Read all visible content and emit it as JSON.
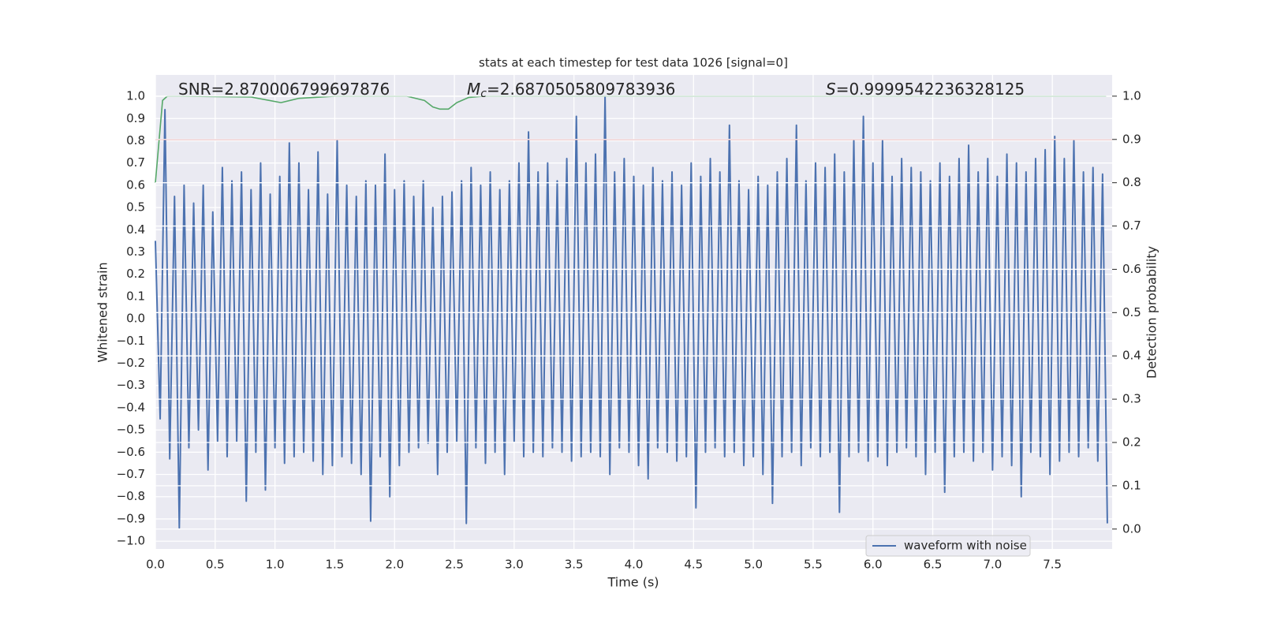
{
  "chart_data": {
    "type": "line",
    "title": "stats at each timestep for test data 1026 [signal=0]",
    "xlabel": "Time (s)",
    "ylabel": "Whitened strain",
    "y2label": "Detection probability",
    "annotations": [
      {
        "text": "SNR=2.870006799697876"
      },
      {
        "symbol": "M",
        "subscript": "c",
        "text": "=2.6870505809783936"
      },
      {
        "symbol": "S",
        "text": "=0.9999542236328125"
      }
    ],
    "legend": "lower right",
    "grid": true,
    "xlim": [
      0,
      8
    ],
    "ylim": [
      -1.035,
      1.096
    ],
    "y2lim": [
      -0.046,
      1.049
    ],
    "xticks": [
      {
        "value": 0,
        "label": "0.0"
      },
      {
        "value": 0.5,
        "label": "0.5"
      },
      {
        "value": 1,
        "label": "1.0"
      },
      {
        "value": 1.5,
        "label": "1.5"
      },
      {
        "value": 2,
        "label": "2.0"
      },
      {
        "value": 2.5,
        "label": "2.5"
      },
      {
        "value": 3,
        "label": "3.0"
      },
      {
        "value": 3.5,
        "label": "3.5"
      },
      {
        "value": 4,
        "label": "4.0"
      },
      {
        "value": 4.5,
        "label": "4.5"
      },
      {
        "value": 5,
        "label": "5.0"
      },
      {
        "value": 5.5,
        "label": "5.5"
      },
      {
        "value": 6,
        "label": "6.0"
      },
      {
        "value": 6.5,
        "label": "6.5"
      },
      {
        "value": 7,
        "label": "7.0"
      },
      {
        "value": 7.5,
        "label": "7.5"
      }
    ],
    "yticks": [
      {
        "value": -1,
        "label": "−1.0"
      },
      {
        "value": -0.9,
        "label": "−0.9"
      },
      {
        "value": -0.8,
        "label": "−0.8"
      },
      {
        "value": -0.7,
        "label": "−0.7"
      },
      {
        "value": -0.6,
        "label": "−0.6"
      },
      {
        "value": -0.5,
        "label": "−0.5"
      },
      {
        "value": -0.4,
        "label": "−0.4"
      },
      {
        "value": -0.3,
        "label": "−0.3"
      },
      {
        "value": -0.2,
        "label": "−0.2"
      },
      {
        "value": -0.1,
        "label": "−0.1"
      },
      {
        "value": 0,
        "label": "0.0"
      },
      {
        "value": 0.1,
        "label": "0.1"
      },
      {
        "value": 0.2,
        "label": "0.2"
      },
      {
        "value": 0.3,
        "label": "0.3"
      },
      {
        "value": 0.4,
        "label": "0.4"
      },
      {
        "value": 0.5,
        "label": "0.5"
      },
      {
        "value": 0.6,
        "label": "0.6"
      },
      {
        "value": 0.7,
        "label": "0.7"
      },
      {
        "value": 0.8,
        "label": "0.8"
      },
      {
        "value": 0.9,
        "label": "0.9"
      },
      {
        "value": 1,
        "label": "1.0"
      }
    ],
    "y2ticks": [
      {
        "value": 0,
        "label": "0.0"
      },
      {
        "value": 0.1,
        "label": "0.1"
      },
      {
        "value": 0.2,
        "label": "0.2"
      },
      {
        "value": 0.3,
        "label": "0.3"
      },
      {
        "value": 0.4,
        "label": "0.4"
      },
      {
        "value": 0.5,
        "label": "0.5"
      },
      {
        "value": 0.6,
        "label": "0.6"
      },
      {
        "value": 0.7,
        "label": "0.7"
      },
      {
        "value": 0.8,
        "label": "0.8"
      },
      {
        "value": 0.9,
        "label": "0.9"
      },
      {
        "value": 1,
        "label": "1.0"
      }
    ],
    "threshold": {
      "value": 0.9,
      "color": "#c44e52",
      "axis": "y2"
    },
    "series": [
      {
        "name": "waveform with noise",
        "color": "#4c72b0",
        "x": [
          0,
          0.04,
          0.08,
          0.12,
          0.16,
          0.2,
          0.24,
          0.28,
          0.32,
          0.36,
          0.4,
          0.44,
          0.48,
          0.52,
          0.56,
          0.6,
          0.64,
          0.68,
          0.72,
          0.76,
          0.8,
          0.84,
          0.88,
          0.92,
          0.96,
          1,
          1.04,
          1.08,
          1.12,
          1.16,
          1.2,
          1.24,
          1.28,
          1.32,
          1.36,
          1.4,
          1.44,
          1.48,
          1.52,
          1.56,
          1.6,
          1.64,
          1.68,
          1.72,
          1.76,
          1.8,
          1.84,
          1.88,
          1.92,
          1.96,
          2,
          2.04,
          2.08,
          2.12,
          2.16,
          2.2,
          2.24,
          2.28,
          2.32,
          2.36,
          2.4,
          2.44,
          2.48,
          2.52,
          2.56,
          2.6,
          2.64,
          2.68,
          2.72,
          2.76,
          2.8,
          2.84,
          2.88,
          2.92,
          2.96,
          3,
          3.04,
          3.08,
          3.12,
          3.16,
          3.2,
          3.24,
          3.28,
          3.32,
          3.36,
          3.4,
          3.44,
          3.48,
          3.52,
          3.56,
          3.6,
          3.64,
          3.68,
          3.72,
          3.76,
          3.8,
          3.84,
          3.88,
          3.92,
          3.96,
          4,
          4.04,
          4.08,
          4.12,
          4.16,
          4.2,
          4.24,
          4.28,
          4.32,
          4.36,
          4.4,
          4.44,
          4.48,
          4.52,
          4.56,
          4.6,
          4.64,
          4.68,
          4.72,
          4.76,
          4.8,
          4.84,
          4.88,
          4.92,
          4.96,
          5,
          5.04,
          5.08,
          5.12,
          5.16,
          5.2,
          5.24,
          5.28,
          5.32,
          5.36,
          5.4,
          5.44,
          5.48,
          5.52,
          5.56,
          5.6,
          5.64,
          5.68,
          5.72,
          5.76,
          5.8,
          5.84,
          5.88,
          5.92,
          5.96,
          6,
          6.04,
          6.08,
          6.12,
          6.16,
          6.2,
          6.24,
          6.28,
          6.32,
          6.36,
          6.4,
          6.44,
          6.48,
          6.52,
          6.56,
          6.6,
          6.64,
          6.68,
          6.72,
          6.76,
          6.8,
          6.84,
          6.88,
          6.92,
          6.96,
          7,
          7.04,
          7.08,
          7.12,
          7.16,
          7.2,
          7.24,
          7.28,
          7.32,
          7.36,
          7.4,
          7.44,
          7.48,
          7.52,
          7.56,
          7.6,
          7.64,
          7.68,
          7.72,
          7.76,
          7.8,
          7.84,
          7.88,
          7.92,
          7.96
        ],
        "values": [
          0.35,
          -0.45,
          0.94,
          -0.63,
          0.55,
          -0.94,
          0.6,
          -0.58,
          0.52,
          -0.5,
          0.6,
          -0.68,
          0.48,
          -0.55,
          0.68,
          -0.62,
          0.62,
          -0.55,
          0.66,
          -0.82,
          0.58,
          -0.6,
          0.7,
          -0.77,
          0.56,
          -0.58,
          0.64,
          -0.65,
          0.79,
          -0.62,
          0.7,
          -0.6,
          0.58,
          -0.64,
          0.75,
          -0.7,
          0.56,
          -0.66,
          0.8,
          -0.62,
          0.6,
          -0.65,
          0.55,
          -0.7,
          0.62,
          -0.91,
          0.6,
          -0.62,
          0.74,
          -0.8,
          0.58,
          -0.66,
          0.62,
          -0.6,
          0.55,
          -0.58,
          0.62,
          -0.56,
          0.5,
          -0.7,
          0.55,
          -0.6,
          0.57,
          -0.55,
          0.62,
          -0.92,
          0.68,
          -0.58,
          0.6,
          -0.65,
          0.66,
          -0.6,
          0.58,
          -0.7,
          0.62,
          -0.55,
          0.7,
          -0.62,
          0.84,
          -0.6,
          0.66,
          -0.62,
          0.7,
          -0.58,
          0.62,
          -0.6,
          0.72,
          -0.64,
          0.91,
          -0.62,
          0.7,
          -0.6,
          0.74,
          -0.62,
          1.0,
          -0.7,
          0.66,
          -0.58,
          0.72,
          -0.6,
          0.64,
          -0.66,
          0.6,
          -0.72,
          0.68,
          -0.58,
          0.62,
          -0.6,
          0.66,
          -0.64,
          0.6,
          -0.62,
          0.7,
          -0.85,
          0.64,
          -0.6,
          0.72,
          -0.58,
          0.66,
          -0.62,
          0.87,
          -0.6,
          0.62,
          -0.66,
          0.58,
          -0.62,
          0.64,
          -0.7,
          0.6,
          -0.83,
          0.66,
          -0.62,
          0.72,
          -0.6,
          0.87,
          -0.66,
          0.62,
          -0.58,
          0.7,
          -0.62,
          0.68,
          -0.6,
          0.74,
          -0.87,
          0.66,
          -0.62,
          0.8,
          -0.6,
          0.91,
          -0.64,
          0.7,
          -0.62,
          0.8,
          -0.66,
          0.64,
          -0.6,
          0.72,
          -0.58,
          0.68,
          -0.62,
          0.66,
          -0.7,
          0.62,
          -0.6,
          0.7,
          -0.78,
          0.64,
          -0.62,
          0.72,
          -0.6,
          0.78,
          -0.64,
          0.66,
          -0.6,
          0.72,
          -0.68,
          0.64,
          -0.62,
          0.74,
          -0.66,
          0.7,
          -0.8,
          0.66,
          -0.6,
          0.72,
          -0.62,
          0.76,
          -0.7,
          0.82,
          -0.64,
          0.72,
          -0.6,
          0.8,
          -0.62,
          0.66,
          -0.58,
          0.68,
          -0.64,
          0.65,
          -0.92
        ]
      },
      {
        "color": "#55a868",
        "axis": "y2",
        "x": [
          0,
          0.06,
          0.1,
          0.2,
          0.8,
          1.05,
          1.2,
          1.5,
          2.1,
          2.25,
          2.32,
          2.38,
          2.45,
          2.52,
          2.62,
          2.75,
          7.95
        ],
        "values": [
          0.8,
          0.99,
          1.0,
          1.0,
          0.998,
          0.985,
          0.995,
          1.0,
          1.0,
          0.99,
          0.975,
          0.97,
          0.97,
          0.985,
          0.997,
          1.0,
          1.0
        ]
      }
    ]
  }
}
